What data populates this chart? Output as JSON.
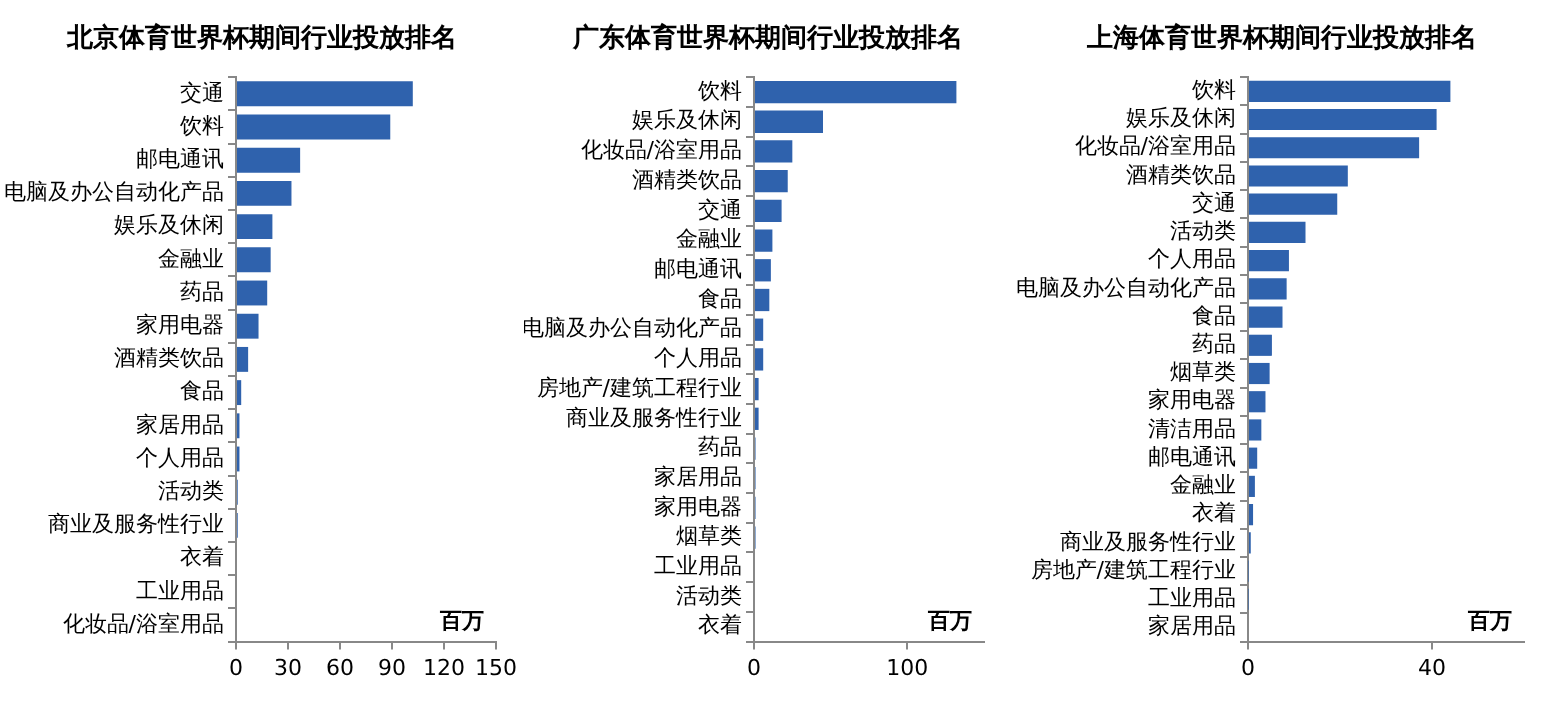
{
  "chart_data": [
    {
      "type": "bar",
      "orientation": "horizontal",
      "title": "北京体育世界杯期间行业投放排名",
      "xlabel": "百万",
      "categories": [
        "交通",
        "饮料",
        "邮电通讯",
        "电脑及办公自动化产品",
        "娱乐及休闲",
        "金融业",
        "药品",
        "家用电器",
        "酒精类饮品",
        "食品",
        "家居用品",
        "个人用品",
        "活动类",
        "商业及服务性行业",
        "衣着",
        "工业用品",
        "化妆品/浴室用品"
      ],
      "values": [
        102,
        89,
        37,
        32,
        21,
        20,
        18,
        13,
        7,
        3,
        2,
        2,
        1,
        1,
        0,
        0,
        0
      ],
      "color": "#2f62ad",
      "xlim": [
        0,
        150
      ],
      "xticks": [
        0,
        30,
        60,
        90,
        120,
        150
      ],
      "grid": false
    },
    {
      "type": "bar",
      "orientation": "horizontal",
      "title": "广东体育世界杯期间行业投放排名",
      "xlabel": "百万",
      "categories": [
        "饮料",
        "娱乐及休闲",
        "化妆品/浴室用品",
        "酒精类饮品",
        "交通",
        "金融业",
        "邮电通讯",
        "食品",
        "电脑及办公自动化产品",
        "个人用品",
        "房地产/建筑工程行业",
        "商业及服务性行业",
        "药品",
        "家居用品",
        "家用电器",
        "烟草类",
        "工业用品",
        "活动类",
        "衣着"
      ],
      "values": [
        132,
        45,
        25,
        22,
        18,
        12,
        11,
        10,
        6,
        6,
        3,
        3,
        1,
        1,
        1,
        1,
        0,
        0,
        0
      ],
      "color": "#2f62ad",
      "xlim": [
        0,
        150
      ],
      "xticks": [
        0,
        100
      ],
      "grid": false
    },
    {
      "type": "bar",
      "orientation": "horizontal",
      "title": "上海体育世界杯期间行业投放排名",
      "xlabel": "百万",
      "categories": [
        "饮料",
        "娱乐及休闲",
        "化妆品/浴室用品",
        "酒精类饮品",
        "交通",
        "活动类",
        "个人用品",
        "电脑及办公自动化产品",
        "食品",
        "药品",
        "烟草类",
        "家用电器",
        "清洁用品",
        "邮电通讯",
        "金融业",
        "衣着",
        "商业及服务性行业",
        "房地产/建筑工程行业",
        "工业用品",
        "家居用品"
      ],
      "values": [
        44,
        41,
        37.2,
        21.7,
        19.4,
        12.5,
        8.9,
        8.4,
        7.5,
        5.2,
        4.7,
        3.8,
        2.9,
        2,
        1.5,
        1.1,
        0.6,
        0.1,
        0.1,
        0
      ],
      "color": "#2f62ad",
      "xlim": [
        0,
        60
      ],
      "xticks": [
        0,
        40
      ],
      "grid": false
    }
  ]
}
